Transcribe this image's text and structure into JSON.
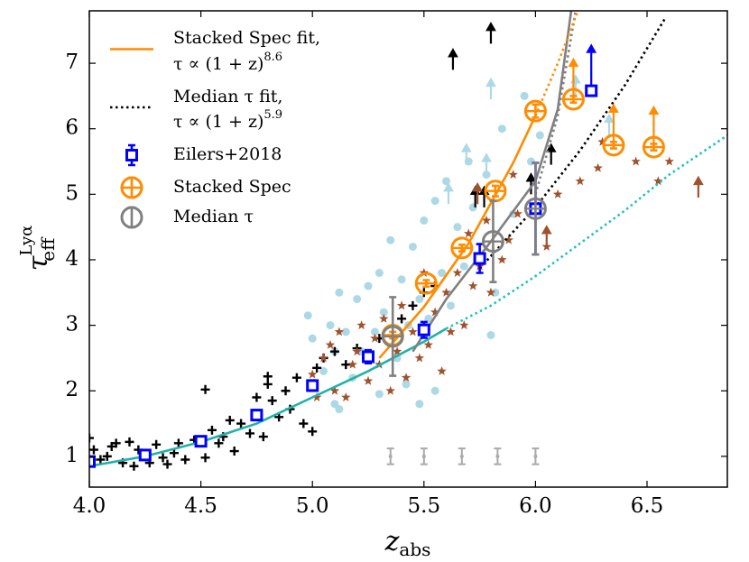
{
  "chart_data": {
    "type": "scatter",
    "xlabel": {
      "text": "z",
      "sub": "abs"
    },
    "ylabel": {
      "text": "τ",
      "sub": "eff",
      "sup": "Lyα"
    },
    "xlim": [
      4.0,
      6.86
    ],
    "ylim": [
      0.53,
      7.8
    ],
    "xticks": [
      {
        "value": 4,
        "label": "4.0"
      },
      {
        "value": 4.5,
        "label": "4.5"
      },
      {
        "value": 5,
        "label": "5.0"
      },
      {
        "value": 5.5,
        "label": "5.5"
      },
      {
        "value": 6,
        "label": "6.0"
      },
      {
        "value": 6.5,
        "label": "6.5"
      }
    ],
    "yticks": [
      1,
      2,
      3,
      4,
      5,
      6,
      7
    ],
    "series": [
      {
        "style": "dot",
        "color": "#add8e6",
        "x": [
          4.98,
          5.0,
          5.05,
          5.08,
          5.1,
          5.12,
          5.15,
          5.18,
          5.2,
          5.22,
          5.25,
          5.28,
          5.3,
          5.32,
          5.35,
          5.38,
          5.4,
          5.43,
          5.45,
          5.48,
          5.5,
          5.52,
          5.55,
          5.58,
          5.6,
          5.62,
          5.65,
          5.68,
          5.7,
          5.72,
          5.78,
          5.82,
          5.85,
          5.9,
          5.95,
          5.98,
          6.02,
          5.1,
          5.12,
          5.3,
          5.42,
          5.55,
          5.8,
          5.48
        ],
        "y": [
          3.15,
          2.8,
          2.3,
          3.0,
          2.6,
          3.5,
          2.9,
          2.2,
          3.4,
          2.6,
          3.6,
          2.9,
          3.8,
          3.2,
          4.3,
          2.5,
          3.7,
          3.0,
          4.2,
          3.4,
          4.6,
          3.1,
          4.9,
          3.8,
          5.2,
          3.3,
          4.5,
          3.9,
          5.5,
          4.8,
          5.3,
          3.5,
          6.0,
          4.7,
          6.5,
          5.5,
          5.9,
          1.8,
          1.72,
          1.95,
          2.1,
          2.0,
          2.85,
          1.8
        ]
      },
      {
        "style": "arrow",
        "color": "#add8e6",
        "x": [
          5.61,
          5.69,
          5.78,
          5.8,
          6.18,
          6.33
        ],
        "y": [
          4.85,
          5.45,
          5.3,
          6.45,
          6.5,
          5.9
        ]
      },
      {
        "style": "plus",
        "color": "#000000",
        "x": [
          4.0,
          4.02,
          4.05,
          4.08,
          4.1,
          4.12,
          4.15,
          4.18,
          4.2,
          4.22,
          4.27,
          4.3,
          4.33,
          4.38,
          4.4,
          4.43,
          4.47,
          4.52,
          4.55,
          4.58,
          4.6,
          4.63,
          4.65,
          4.68,
          4.72,
          4.75,
          4.78,
          4.8,
          4.82,
          4.85,
          4.88,
          4.9,
          4.93,
          4.96,
          5.0,
          5.02,
          5.05,
          5.1,
          5.15,
          5.2,
          5.3,
          5.4,
          5.45,
          5.5,
          5.55,
          4.52,
          4.8,
          4.35
        ],
        "y": [
          1.28,
          1.1,
          0.95,
          1.0,
          1.15,
          1.2,
          0.9,
          1.22,
          0.85,
          1.1,
          0.9,
          1.18,
          0.98,
          1.05,
          1.2,
          0.95,
          1.25,
          0.98,
          1.4,
          1.2,
          1.3,
          1.55,
          1.08,
          1.5,
          1.35,
          1.9,
          1.3,
          2.1,
          1.85,
          1.6,
          2.0,
          1.72,
          2.2,
          1.5,
          1.38,
          2.35,
          2.5,
          2.6,
          2.4,
          2.65,
          2.8,
          3.1,
          3.3,
          3.5,
          3.6,
          2.02,
          2.22,
          0.88
        ]
      },
      {
        "style": "arrow",
        "color": "#000000",
        "x": [
          5.63,
          5.8,
          5.73,
          5.77,
          5.98,
          6.07
        ],
        "y": [
          6.9,
          7.3,
          4.8,
          4.8,
          5.0,
          5.45
        ]
      },
      {
        "style": "star",
        "color": "#a0522d",
        "x": [
          5.0,
          5.02,
          5.05,
          5.08,
          5.1,
          5.12,
          5.15,
          5.18,
          5.2,
          5.22,
          5.25,
          5.28,
          5.3,
          5.32,
          5.35,
          5.38,
          5.4,
          5.42,
          5.45,
          5.48,
          5.5,
          5.52,
          5.55,
          5.58,
          5.6,
          5.62,
          5.65,
          5.68,
          5.7,
          5.72,
          5.75,
          5.78,
          5.8,
          5.85,
          5.88,
          5.92,
          6.05,
          6.1,
          6.2,
          6.3,
          6.45,
          6.55,
          6.6,
          6.28,
          5.9
        ],
        "y": [
          2.25,
          1.9,
          2.5,
          2.7,
          2.0,
          2.9,
          1.9,
          2.4,
          2.6,
          3.0,
          2.15,
          2.8,
          2.4,
          3.1,
          2.0,
          2.6,
          3.3,
          2.2,
          2.9,
          2.5,
          3.8,
          2.7,
          3.2,
          2.3,
          3.5,
          2.9,
          3.8,
          3.0,
          4.4,
          3.6,
          3.9,
          4.6,
          3.5,
          4.0,
          4.3,
          4.7,
          4.2,
          5.0,
          5.2,
          5.8,
          5.5,
          5.2,
          5.5,
          5.4,
          5.3
        ]
      },
      {
        "style": "arrow",
        "color": "#a0522d",
        "x": [
          5.74,
          6.05,
          6.73
        ],
        "y": [
          4.85,
          4.2,
          4.95
        ]
      },
      {
        "style": "line",
        "color": "#20b2aa",
        "x": [
          4.0,
          4.25,
          4.5,
          4.75,
          5.0,
          5.25,
          5.5,
          5.6
        ],
        "y": [
          0.85,
          1.0,
          1.22,
          1.5,
          1.9,
          2.3,
          2.75,
          2.95
        ]
      },
      {
        "style": "dotted",
        "color": "#20c0c0",
        "x": [
          5.6,
          5.8,
          6.0,
          6.2,
          6.4,
          6.6,
          6.86
        ],
        "y": [
          2.95,
          3.3,
          3.75,
          4.25,
          4.75,
          5.3,
          5.9
        ]
      },
      {
        "style": "line",
        "color": "#808080",
        "x": [
          5.45,
          5.6,
          5.8,
          6.0,
          6.1,
          6.16
        ],
        "y": [
          2.6,
          3.4,
          4.28,
          5.2,
          6.3,
          7.8
        ]
      },
      {
        "style": "dotted",
        "color": "#808080",
        "x": [
          6.0,
          6.1,
          6.18
        ],
        "y": [
          5.0,
          6.2,
          7.8
        ]
      },
      {
        "name": "Stacked Spec fit,",
        "formula": "τ ∝ (1 + z)",
        "exponent": "8.6",
        "style": "line",
        "color": "#ff8c00",
        "x": [
          5.3,
          5.5,
          5.7,
          5.9,
          6.0
        ],
        "y": [
          2.5,
          3.28,
          4.25,
          5.48,
          6.2
        ]
      },
      {
        "style": "dotted",
        "color": "#ff8c00",
        "x": [
          6.0,
          6.1,
          6.15,
          6.19
        ],
        "y": [
          6.2,
          7.0,
          7.44,
          7.8
        ]
      },
      {
        "name": "Median τ fit,",
        "formula": "τ ∝ (1 + z)",
        "exponent": "5.9",
        "style": "dotted",
        "color": "#000000",
        "x": [
          5.75,
          6.0,
          6.2,
          6.4,
          6.58
        ],
        "y": [
          3.87,
          4.8,
          5.67,
          6.66,
          7.68
        ]
      },
      {
        "style": "errbar",
        "color": "#a9a9a9",
        "x": [
          5.35,
          5.5,
          5.67,
          5.83,
          6.0
        ],
        "y": [
          1.0,
          1.0,
          1.0,
          1.0,
          1.0
        ],
        "err": [
          0.12,
          0.12,
          0.12,
          0.12,
          0.12
        ]
      },
      {
        "name": "Eilers+2018",
        "style": "square",
        "color": "#0000ff",
        "x": [
          4.0,
          4.25,
          4.5,
          4.75,
          5.0,
          5.25,
          5.5,
          5.75,
          6.0
        ],
        "y": [
          0.92,
          1.02,
          1.23,
          1.63,
          2.08,
          2.52,
          2.93,
          4.02,
          4.78
        ],
        "err": [
          0.06,
          0.06,
          0.05,
          0.06,
          0.08,
          0.1,
          0.12,
          0.22,
          0.7
        ]
      },
      {
        "style": "square",
        "color": "#0000ff",
        "arrow": true,
        "x": [
          6.25
        ],
        "y": [
          6.58
        ],
        "err": [
          0.05
        ]
      },
      {
        "name": "Stacked Spec",
        "style": "circle",
        "color": "#ff8c00",
        "x": [
          5.36,
          5.51,
          5.67,
          5.82,
          6.0
        ],
        "y": [
          2.85,
          3.64,
          4.18,
          5.05,
          6.27
        ],
        "err": [
          0.05,
          0.05,
          0.05,
          0.08,
          0.1
        ]
      },
      {
        "style": "circle",
        "color": "#ff8c00",
        "arrow": true,
        "x": [
          6.17,
          6.35,
          6.53
        ],
        "y": [
          6.45,
          5.75,
          5.72
        ],
        "err": [
          0.05,
          0.05,
          0.05
        ]
      },
      {
        "name": "Median τ",
        "style": "circle",
        "color": "#808080",
        "x": [
          5.36,
          5.81,
          6.0
        ],
        "y": [
          2.83,
          4.28,
          4.78
        ],
        "err": [
          0.6,
          0.62,
          0.7
        ]
      }
    ]
  }
}
